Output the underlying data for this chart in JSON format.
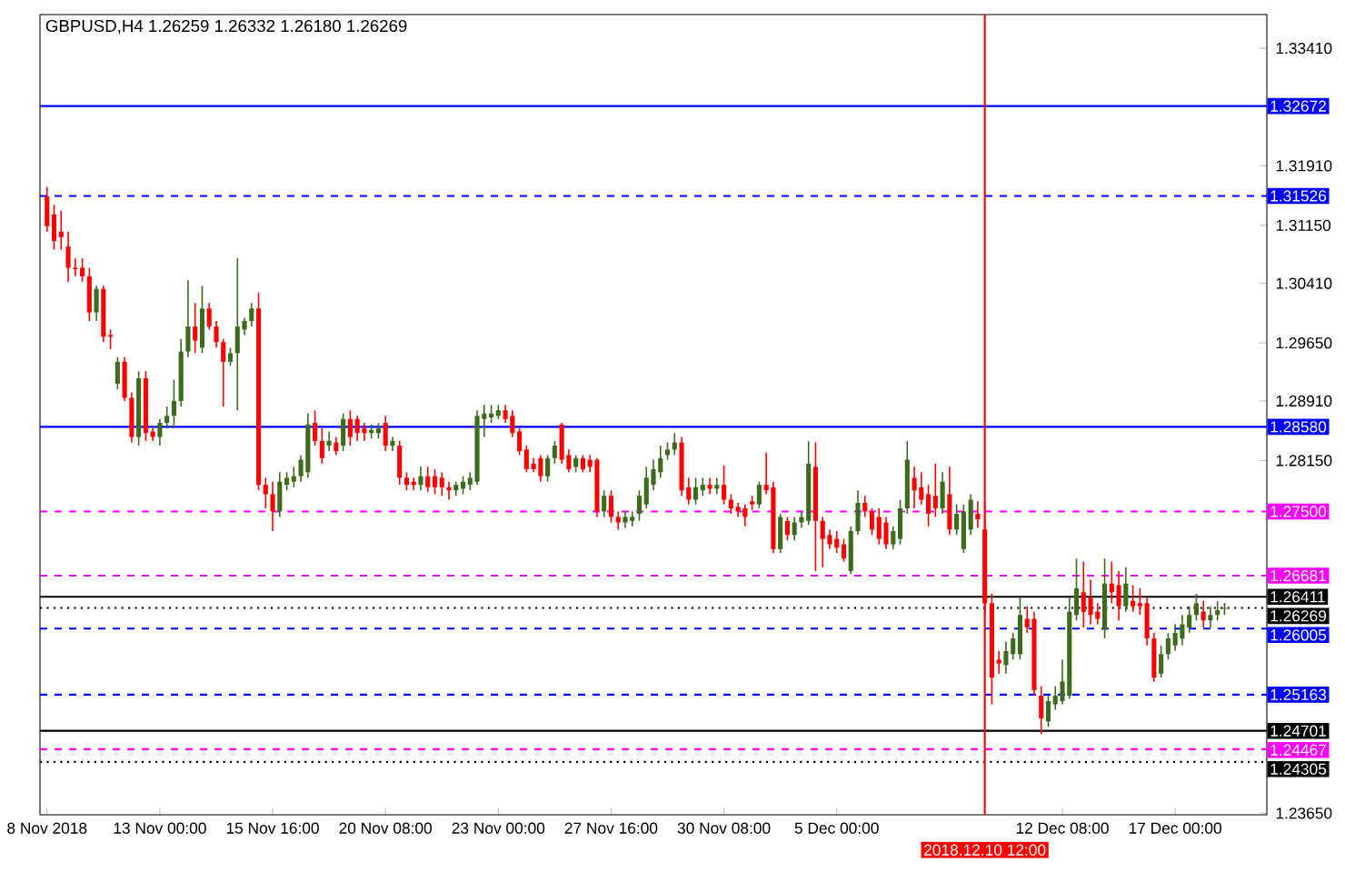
{
  "chart_data": {
    "type": "candlestick",
    "title": "GBPUSD,H4  1.26259 1.26332 1.26180 1.26269",
    "categories": [
      "8 Nov 2018",
      null,
      null,
      null,
      null,
      null,
      null,
      null,
      null,
      null,
      null,
      null,
      null,
      null,
      null,
      null,
      "13 Nov 00:00",
      null,
      null,
      null,
      null,
      null,
      null,
      null,
      null,
      null,
      null,
      null,
      null,
      null,
      null,
      null,
      "15 Nov 16:00",
      null,
      null,
      null,
      null,
      null,
      null,
      null,
      null,
      null,
      null,
      null,
      null,
      null,
      null,
      null,
      "20 Nov 08:00",
      null,
      null,
      null,
      null,
      null,
      null,
      null,
      null,
      null,
      null,
      null,
      null,
      null,
      null,
      null,
      "23 Nov 00:00",
      null,
      null,
      null,
      null,
      null,
      null,
      null,
      null,
      null,
      null,
      null,
      null,
      null,
      null,
      null,
      "27 Nov 16:00",
      null,
      null,
      null,
      null,
      null,
      null,
      null,
      null,
      null,
      null,
      null,
      null,
      null,
      null,
      null,
      "30 Nov 08:00",
      null,
      null,
      null,
      null,
      null,
      null,
      null,
      null,
      null,
      null,
      null,
      null,
      null,
      null,
      null,
      "5 Dec 00:00",
      null,
      null,
      null,
      null,
      null,
      null,
      null,
      null,
      null,
      null,
      null,
      null,
      null,
      null,
      null,
      null,
      null,
      null,
      null,
      null,
      "2018.12.10 12:00",
      null,
      null,
      null,
      null,
      null,
      null,
      null,
      null,
      null,
      null,
      "12 Dec 08:00",
      null,
      null,
      null,
      null,
      null,
      null,
      null,
      null,
      null,
      null,
      null,
      null,
      null,
      null,
      null,
      "17 Dec 00:00",
      null,
      null,
      null,
      null,
      null,
      null,
      null
    ],
    "ohlc": [
      [
        1.3152,
        1.3164,
        1.3107,
        1.3114
      ],
      [
        1.3129,
        1.3141,
        1.3084,
        1.3095
      ],
      [
        1.3107,
        1.3134,
        1.3084,
        1.31
      ],
      [
        1.3088,
        1.3107,
        1.3043,
        1.3061
      ],
      [
        1.3061,
        1.3073,
        1.305,
        1.3059
      ],
      [
        1.3061,
        1.3073,
        1.3043,
        1.305
      ],
      [
        1.305,
        1.3061,
        1.2993,
        1.3004
      ],
      [
        1.3004,
        1.3038,
        1.2993,
        1.3034
      ],
      [
        1.3034,
        1.3038,
        1.2966,
        1.2973
      ],
      [
        1.2975,
        1.2982,
        1.2957,
        1.2973
      ],
      [
        1.2913,
        1.2947,
        1.2906,
        1.2941
      ],
      [
        1.2941,
        1.2947,
        1.2891,
        1.2895
      ],
      [
        1.2895,
        1.2902,
        1.2838,
        1.2845
      ],
      [
        1.2845,
        1.2929,
        1.2834,
        1.292
      ],
      [
        1.292,
        1.2929,
        1.284,
        1.285
      ],
      [
        1.2852,
        1.2856,
        1.284,
        1.2845
      ],
      [
        1.2845,
        1.2868,
        1.2834,
        1.2863
      ],
      [
        1.2863,
        1.2884,
        1.2856,
        1.2872
      ],
      [
        1.2872,
        1.2918,
        1.2856,
        1.2891
      ],
      [
        1.2891,
        1.297,
        1.2884,
        1.2954
      ],
      [
        1.2954,
        1.3045,
        1.2947,
        1.2986
      ],
      [
        1.2986,
        1.3016,
        1.2952,
        1.2968
      ],
      [
        1.2959,
        1.3038,
        1.2952,
        1.3009
      ],
      [
        1.3009,
        1.3016,
        1.2982,
        1.2986
      ],
      [
        1.2986,
        1.2993,
        1.2959,
        1.2966
      ],
      [
        1.2966,
        1.297,
        1.2884,
        1.2941
      ],
      [
        1.2941,
        1.2959,
        1.2936,
        1.2952
      ],
      [
        1.2952,
        1.3073,
        1.2879,
        1.2986
      ],
      [
        1.2982,
        1.2997,
        1.2975,
        1.2993
      ],
      [
        1.2993,
        1.3016,
        1.2986,
        1.3009
      ],
      [
        1.3009,
        1.3029,
        1.2777,
        1.2784
      ],
      [
        1.2784,
        1.2793,
        1.2754,
        1.2772
      ],
      [
        1.2772,
        1.2788,
        1.2725,
        1.275
      ],
      [
        1.275,
        1.28,
        1.2743,
        1.2788
      ],
      [
        1.2784,
        1.28,
        1.2777,
        1.2793
      ],
      [
        1.2788,
        1.2807,
        1.2781,
        1.2795
      ],
      [
        1.2795,
        1.2822,
        1.2788,
        1.2816
      ],
      [
        1.28,
        1.2875,
        1.2793,
        1.2861
      ],
      [
        1.2863,
        1.2879,
        1.2834,
        1.284
      ],
      [
        1.284,
        1.2856,
        1.2811,
        1.2818
      ],
      [
        1.2834,
        1.2852,
        1.2827,
        1.284
      ],
      [
        1.2838,
        1.2845,
        1.2822,
        1.2827
      ],
      [
        1.2834,
        1.2875,
        1.2827,
        1.2868
      ],
      [
        1.2868,
        1.2879,
        1.2834,
        1.2845
      ],
      [
        1.2868,
        1.2872,
        1.284,
        1.285
      ],
      [
        1.2856,
        1.2863,
        1.284,
        1.285
      ],
      [
        1.285,
        1.2861,
        1.2843,
        1.2854
      ],
      [
        1.285,
        1.2863,
        1.2843,
        1.2856
      ],
      [
        1.2863,
        1.2872,
        1.2827,
        1.2834
      ],
      [
        1.2834,
        1.2845,
        1.2827,
        1.284
      ],
      [
        1.2834,
        1.284,
        1.2784,
        1.2793
      ],
      [
        1.2793,
        1.28,
        1.2777,
        1.2784
      ],
      [
        1.2788,
        1.2793,
        1.2777,
        1.2784
      ],
      [
        1.2784,
        1.2807,
        1.2777,
        1.2795
      ],
      [
        1.2795,
        1.2807,
        1.2775,
        1.2781
      ],
      [
        1.2795,
        1.2804,
        1.2772,
        1.2781
      ],
      [
        1.2793,
        1.28,
        1.277,
        1.2781
      ],
      [
        1.2781,
        1.2788,
        1.2765,
        1.2777
      ],
      [
        1.2777,
        1.2788,
        1.277,
        1.2784
      ],
      [
        1.2779,
        1.2795,
        1.2772,
        1.2788
      ],
      [
        1.2784,
        1.28,
        1.2777,
        1.2793
      ],
      [
        1.2788,
        1.2879,
        1.2784,
        1.2872
      ],
      [
        1.2868,
        1.2886,
        1.2845,
        1.2875
      ],
      [
        1.287,
        1.2886,
        1.2863,
        1.2875
      ],
      [
        1.2872,
        1.2886,
        1.2868,
        1.2879
      ],
      [
        1.2879,
        1.2886,
        1.2863,
        1.2868
      ],
      [
        1.2872,
        1.2879,
        1.2845,
        1.285
      ],
      [
        1.2852,
        1.2856,
        1.2822,
        1.2827
      ],
      [
        1.2829,
        1.2834,
        1.28,
        1.2804
      ],
      [
        1.2811,
        1.2818,
        1.28,
        1.2804
      ],
      [
        1.2818,
        1.2822,
        1.2788,
        1.2795
      ],
      [
        1.2795,
        1.2822,
        1.2788,
        1.2818
      ],
      [
        1.2818,
        1.284,
        1.2811,
        1.2834
      ],
      [
        1.2861,
        1.2863,
        1.2811,
        1.2816
      ],
      [
        1.2822,
        1.2829,
        1.28,
        1.2804
      ],
      [
        1.2807,
        1.2822,
        1.28,
        1.2818
      ],
      [
        1.2818,
        1.2822,
        1.28,
        1.2804
      ],
      [
        1.2816,
        1.2822,
        1.28,
        1.2807
      ],
      [
        1.2816,
        1.2818,
        1.2743,
        1.275
      ],
      [
        1.275,
        1.2777,
        1.2743,
        1.277
      ],
      [
        1.277,
        1.2777,
        1.2736,
        1.2743
      ],
      [
        1.2743,
        1.275,
        1.2727,
        1.2736
      ],
      [
        1.2736,
        1.275,
        1.2729,
        1.2743
      ],
      [
        1.2738,
        1.275,
        1.2731,
        1.2743
      ],
      [
        1.2747,
        1.2777,
        1.2738,
        1.277
      ],
      [
        1.2759,
        1.2807,
        1.2754,
        1.2793
      ],
      [
        1.2784,
        1.2816,
        1.2777,
        1.2804
      ],
      [
        1.28,
        1.2834,
        1.2793,
        1.2818
      ],
      [
        1.2822,
        1.2838,
        1.2816,
        1.2829
      ],
      [
        1.2829,
        1.285,
        1.2822,
        1.2838
      ],
      [
        1.2838,
        1.2845,
        1.277,
        1.2777
      ],
      [
        1.2781,
        1.2793,
        1.2759,
        1.2765
      ],
      [
        1.2765,
        1.2793,
        1.2759,
        1.2781
      ],
      [
        1.2777,
        1.2793,
        1.277,
        1.2784
      ],
      [
        1.2784,
        1.2793,
        1.2772,
        1.2779
      ],
      [
        1.2779,
        1.2793,
        1.2772,
        1.2784
      ],
      [
        1.2784,
        1.2809,
        1.2759,
        1.2765
      ],
      [
        1.2765,
        1.2772,
        1.2747,
        1.2754
      ],
      [
        1.2756,
        1.2761,
        1.2743,
        1.275
      ],
      [
        1.2754,
        1.2759,
        1.2731,
        1.2743
      ],
      [
        1.2763,
        1.277,
        1.2752,
        1.2759
      ],
      [
        1.2759,
        1.2788,
        1.2754,
        1.2784
      ],
      [
        1.2784,
        1.2825,
        1.2772,
        1.2777
      ],
      [
        1.2781,
        1.2788,
        1.2697,
        1.2702
      ],
      [
        1.2702,
        1.2747,
        1.2697,
        1.2743
      ],
      [
        1.2738,
        1.2743,
        1.2713,
        1.272
      ],
      [
        1.272,
        1.2743,
        1.2713,
        1.2736
      ],
      [
        1.2736,
        1.275,
        1.2729,
        1.2743
      ],
      [
        1.2738,
        1.284,
        1.2733,
        1.2811
      ],
      [
        1.2807,
        1.2838,
        1.2674,
        1.2738
      ],
      [
        1.2738,
        1.2743,
        1.2679,
        1.2715
      ],
      [
        1.272,
        1.2727,
        1.2702,
        1.2708
      ],
      [
        1.2715,
        1.2725,
        1.2697,
        1.2704
      ],
      [
        1.2708,
        1.2715,
        1.2686,
        1.269
      ],
      [
        1.2674,
        1.2731,
        1.267,
        1.2725
      ],
      [
        1.2725,
        1.2777,
        1.272,
        1.2761
      ],
      [
        1.2761,
        1.277,
        1.2743,
        1.275
      ],
      [
        1.275,
        1.2754,
        1.272,
        1.2727
      ],
      [
        1.2743,
        1.2754,
        1.2708,
        1.2715
      ],
      [
        1.2736,
        1.2743,
        1.2702,
        1.2708
      ],
      [
        1.2708,
        1.2731,
        1.2702,
        1.2725
      ],
      [
        1.2715,
        1.2765,
        1.2708,
        1.2754
      ],
      [
        1.2754,
        1.284,
        1.2747,
        1.2816
      ],
      [
        1.2793,
        1.2807,
        1.2754,
        1.2777
      ],
      [
        1.2781,
        1.28,
        1.2759,
        1.2765
      ],
      [
        1.2772,
        1.2784,
        1.2731,
        1.2747
      ],
      [
        1.277,
        1.2811,
        1.2743,
        1.2754
      ],
      [
        1.2754,
        1.28,
        1.2747,
        1.2788
      ],
      [
        1.2772,
        1.2807,
        1.272,
        1.2727
      ],
      [
        1.2727,
        1.2759,
        1.272,
        1.2747
      ],
      [
        1.2702,
        1.2759,
        1.2697,
        1.275
      ],
      [
        1.2727,
        1.2772,
        1.272,
        1.2765
      ],
      [
        1.2747,
        1.2763,
        1.2729,
        1.274
      ],
      [
        1.2727,
        1.2763,
        1.2618,
        1.2633
      ],
      [
        1.2633,
        1.2645,
        1.2504,
        1.2538
      ],
      [
        1.2561,
        1.2572,
        1.2543,
        1.2556
      ],
      [
        1.2554,
        1.2584,
        1.2543,
        1.2572
      ],
      [
        1.2568,
        1.2595,
        1.2561,
        1.2588
      ],
      [
        1.2568,
        1.264,
        1.2561,
        1.2618
      ],
      [
        1.2613,
        1.2629,
        1.2595,
        1.2602
      ],
      [
        1.2613,
        1.2622,
        1.2515,
        1.2522
      ],
      [
        1.2515,
        1.2527,
        1.2466,
        1.2486
      ],
      [
        1.2482,
        1.2515,
        1.2475,
        1.2508
      ],
      [
        1.2504,
        1.2527,
        1.2497,
        1.2515
      ],
      [
        1.2508,
        1.2561,
        1.2504,
        1.2533
      ],
      [
        1.2515,
        1.264,
        1.2511,
        1.2622
      ],
      [
        1.2618,
        1.269,
        1.2611,
        1.2652
      ],
      [
        1.2647,
        1.2686,
        1.2602,
        1.2622
      ],
      [
        1.264,
        1.2663,
        1.2606,
        1.2618
      ],
      [
        1.2622,
        1.2633,
        1.2606,
        1.2613
      ],
      [
        1.2599,
        1.269,
        1.2588,
        1.2658
      ],
      [
        1.2658,
        1.2686,
        1.2633,
        1.2647
      ],
      [
        1.2656,
        1.2674,
        1.2611,
        1.2629
      ],
      [
        1.2629,
        1.2679,
        1.2622,
        1.2658
      ],
      [
        1.2636,
        1.2656,
        1.2622,
        1.2629
      ],
      [
        1.2633,
        1.2652,
        1.2618,
        1.2629
      ],
      [
        1.2633,
        1.264,
        1.2579,
        1.2588
      ],
      [
        1.2588,
        1.2595,
        1.2533,
        1.2538
      ],
      [
        1.2543,
        1.2579,
        1.2538,
        1.2568
      ],
      [
        1.2568,
        1.2595,
        1.2561,
        1.2588
      ],
      [
        1.2579,
        1.2606,
        1.2572,
        1.2595
      ],
      [
        1.2588,
        1.2618,
        1.2579,
        1.2606
      ],
      [
        1.2602,
        1.2629,
        1.2595,
        1.2618
      ],
      [
        1.2618,
        1.2645,
        1.2611,
        1.2633
      ],
      [
        1.2622,
        1.2636,
        1.2602,
        1.2611
      ],
      [
        1.2611,
        1.2629,
        1.2602,
        1.2618
      ],
      [
        1.2618,
        1.2636,
        1.2611,
        1.2624
      ],
      [
        1.26259,
        1.26332,
        1.2618,
        1.26269
      ]
    ],
    "colors": [
      "#ff0000",
      "#ff0000",
      "#ff0000",
      "#ff0000",
      "#ff0000",
      "#ff0000",
      "#ff0000",
      "#3d6b1e",
      "#ff0000",
      "#ff0000",
      "#3d6b1e",
      "#ff0000",
      "#ff0000",
      "#3d6b1e",
      "#ff0000",
      "#ff0000",
      "#3d6b1e",
      "#3d6b1e",
      "#3d6b1e",
      "#3d6b1e",
      "#3d6b1e",
      "#ff0000",
      "#3d6b1e",
      "#ff0000",
      "#ff0000",
      "#ff0000",
      "#3d6b1e",
      "#3d6b1e",
      "#3d6b1e",
      "#3d6b1e",
      "#ff0000",
      "#ff0000",
      "#ff0000",
      "#3d6b1e",
      "#3d6b1e",
      "#3d6b1e",
      "#3d6b1e",
      "#3d6b1e",
      "#ff0000",
      "#ff0000",
      "#3d6b1e",
      "#ff0000",
      "#3d6b1e",
      "#ff0000",
      "#ff0000",
      "#ff0000",
      "#3d6b1e",
      "#3d6b1e",
      "#ff0000",
      "#3d6b1e",
      "#ff0000",
      "#ff0000",
      "#ff0000",
      "#3d6b1e",
      "#ff0000",
      "#ff0000",
      "#ff0000",
      "#ff0000",
      "#3d6b1e",
      "#3d6b1e",
      "#3d6b1e",
      "#3d6b1e",
      "#3d6b1e",
      "#3d6b1e",
      "#3d6b1e",
      "#ff0000",
      "#ff0000",
      "#ff0000",
      "#ff0000",
      "#ff0000",
      "#ff0000",
      "#3d6b1e",
      "#3d6b1e",
      "#ff0000",
      "#ff0000",
      "#3d6b1e",
      "#ff0000",
      "#ff0000",
      "#ff0000",
      "#3d6b1e",
      "#ff0000",
      "#ff0000",
      "#3d6b1e",
      "#3d6b1e",
      "#3d6b1e",
      "#3d6b1e",
      "#3d6b1e",
      "#3d6b1e",
      "#3d6b1e",
      "#3d6b1e",
      "#ff0000",
      "#ff0000",
      "#3d6b1e",
      "#3d6b1e",
      "#ff0000",
      "#3d6b1e",
      "#ff0000",
      "#ff0000",
      "#ff0000",
      "#ff0000",
      "#ff0000",
      "#3d6b1e",
      "#ff0000",
      "#ff0000",
      "#3d6b1e",
      "#ff0000",
      "#3d6b1e",
      "#3d6b1e",
      "#3d6b1e",
      "#ff0000",
      "#ff0000",
      "#ff0000",
      "#ff0000",
      "#ff0000",
      "#3d6b1e",
      "#3d6b1e",
      "#ff0000",
      "#ff0000",
      "#ff0000",
      "#ff0000",
      "#3d6b1e",
      "#3d6b1e",
      "#3d6b1e",
      "#ff0000",
      "#ff0000",
      "#ff0000",
      "#ff0000",
      "#3d6b1e",
      "#ff0000",
      "#3d6b1e",
      "#3d6b1e",
      "#3d6b1e",
      "#ff0000",
      "#ff0000",
      "#ff0000",
      "#ff0000",
      "#3d6b1e",
      "#3d6b1e",
      "#3d6b1e",
      "#ff0000",
      "#ff0000",
      "#ff0000",
      "#3d6b1e",
      "#3d6b1e",
      "#3d6b1e",
      "#3d6b1e",
      "#3d6b1e",
      "#ff0000",
      "#ff0000",
      "#ff0000",
      "#3d6b1e",
      "#ff0000",
      "#ff0000",
      "#3d6b1e",
      "#ff0000",
      "#ff0000",
      "#ff0000",
      "#ff0000",
      "#3d6b1e",
      "#3d6b1e",
      "#3d6b1e",
      "#3d6b1e",
      "#3d6b1e",
      "#3d6b1e",
      "#ff0000",
      "#3d6b1e",
      "#3d6b1e",
      "#3d6b1e"
    ],
    "ylim": [
      1.2363,
      1.3384
    ],
    "yticks": [
      {
        "value": 1.3341,
        "label": "1.33410"
      },
      {
        "value": 1.3191,
        "label": "1.31910"
      },
      {
        "value": 1.3115,
        "label": "1.31150"
      },
      {
        "value": 1.3041,
        "label": "1.30410"
      },
      {
        "value": 1.2965,
        "label": "1.29650"
      },
      {
        "value": 1.2891,
        "label": "1.28910"
      },
      {
        "value": 1.2815,
        "label": "1.28150"
      },
      {
        "value": 1.2365,
        "label": "1.23650"
      }
    ],
    "ref_lines": [
      {
        "axis": "y",
        "value": 1.32672,
        "label": "1.32672",
        "color": "#0000ff",
        "line_style": "solid"
      },
      {
        "axis": "y",
        "value": 1.31526,
        "label": "1.31526",
        "color": "#0000ff",
        "line_style": "dashed"
      },
      {
        "axis": "y",
        "value": 1.2858,
        "label": "1.28580",
        "color": "#0000ff",
        "line_style": "solid"
      },
      {
        "axis": "y",
        "value": 1.275,
        "label": "1.27500",
        "color": "#ff00ff",
        "line_style": "dashed"
      },
      {
        "axis": "y",
        "value": 1.26681,
        "label": "1.26681",
        "color": "#ff00ff",
        "line_style": "dashed"
      },
      {
        "axis": "y",
        "value": 1.26411,
        "label": "1.26411",
        "color": "#000000",
        "line_style": "solid"
      },
      {
        "axis": "y",
        "value": 1.26269,
        "label": "1.26269",
        "color": "#000000",
        "line_style": "dotted"
      },
      {
        "axis": "y",
        "value": 1.26005,
        "label": "1.26005",
        "color": "#0000ff",
        "line_style": "dashed"
      },
      {
        "axis": "y",
        "value": 1.25163,
        "label": "1.25163",
        "color": "#0000ff",
        "line_style": "dashed"
      },
      {
        "axis": "y",
        "value": 1.24701,
        "label": "1.24701",
        "color": "#000000",
        "line_style": "solid"
      },
      {
        "axis": "y",
        "value": 1.24467,
        "label": "1.24467",
        "color": "#ff00ff",
        "line_style": "dashed"
      },
      {
        "axis": "y",
        "value": 1.24305,
        "label": "1.24305",
        "color": "#000000",
        "line_style": "dotted"
      },
      {
        "axis": "x",
        "value": "2018.12.10 12:00",
        "color": "#ff0000",
        "line_style": "solid"
      }
    ]
  }
}
